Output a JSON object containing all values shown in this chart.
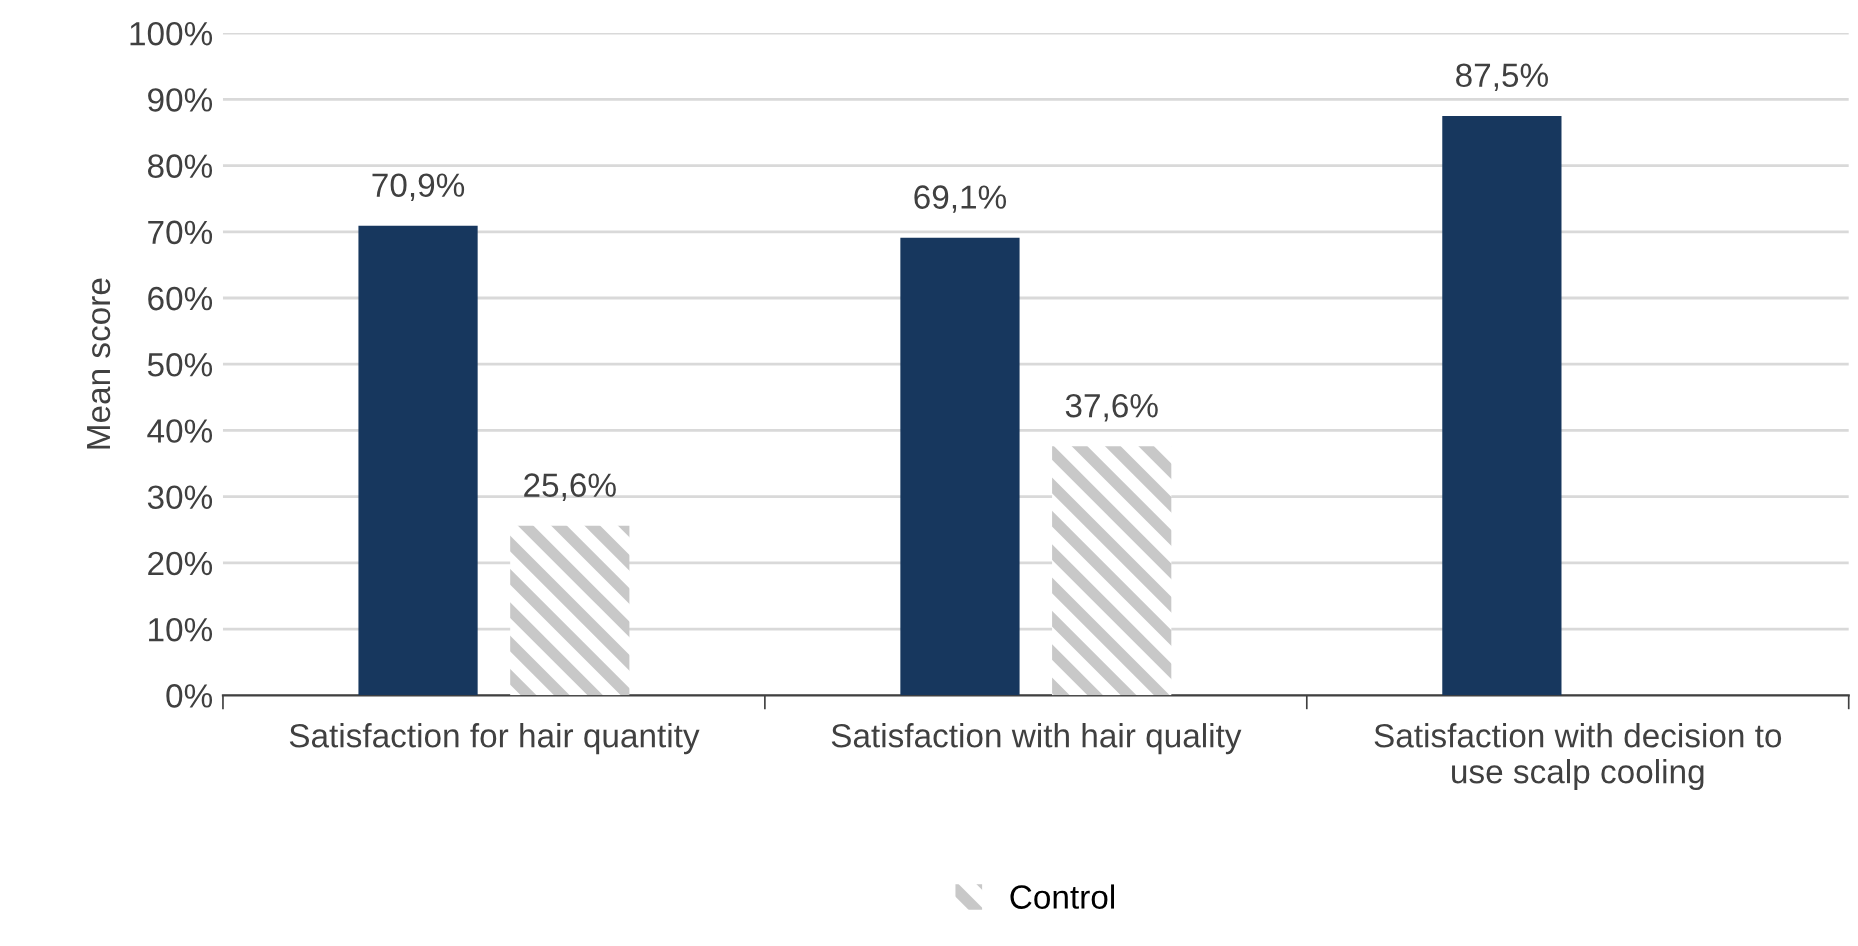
{
  "chart_data": {
    "type": "bar",
    "ylabel": "Mean score",
    "categories": [
      "Satisfaction for hair quantity",
      "Satisfaction with hair quality",
      "Satisfaction with decision to\nuse scalp cooling"
    ],
    "series": [
      {
        "color": "#17375e",
        "values": [
          70.9,
          69.1,
          87.5
        ],
        "value_labels": [
          "70,9%",
          "69,1%",
          "87,5%"
        ]
      },
      {
        "name": "Control",
        "color": "#c8c8c8",
        "values": [
          25.6,
          37.6,
          null
        ],
        "value_labels": [
          "25,6%",
          "37,6%",
          null
        ]
      }
    ],
    "ylim": [
      0,
      100
    ],
    "yticks": [
      {
        "value": 0,
        "label": "0%"
      },
      {
        "value": 10,
        "label": "10%"
      },
      {
        "value": 20,
        "label": "20%"
      },
      {
        "value": 30,
        "label": "30%"
      },
      {
        "value": 40,
        "label": "40%"
      },
      {
        "value": 50,
        "label": "50%"
      },
      {
        "value": 60,
        "label": "60%"
      },
      {
        "value": 70,
        "label": "70%"
      },
      {
        "value": 80,
        "label": "80%"
      },
      {
        "value": 90,
        "label": "90%"
      },
      {
        "value": 100,
        "label": "100%"
      }
    ],
    "grid": "y",
    "legend": "bottom"
  }
}
